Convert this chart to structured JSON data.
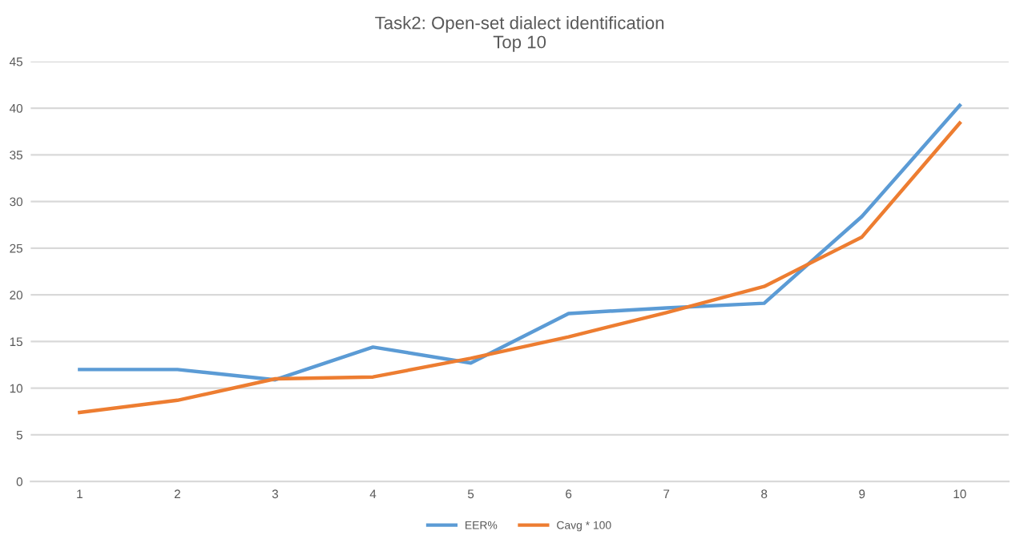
{
  "chart_data": {
    "type": "line",
    "title": "Task2: Open-set dialect identification\nTop 10",
    "categories": [
      "1",
      "2",
      "3",
      "4",
      "5",
      "6",
      "7",
      "8",
      "9",
      "10"
    ],
    "series": [
      {
        "name": "EER%",
        "color": "#5b9bd5",
        "values": [
          12,
          12,
          10.9,
          14.4,
          12.7,
          18,
          18.6,
          19.1,
          28.4,
          40.3
        ]
      },
      {
        "name": "Cavg * 100",
        "color": "#ed7d31",
        "values": [
          7.4,
          8.7,
          11,
          11.2,
          13.2,
          15.5,
          18.1,
          20.9,
          26.2,
          38.4
        ]
      }
    ],
    "ylim": [
      0,
      45
    ],
    "yticks": [
      0,
      5,
      10,
      15,
      20,
      25,
      30,
      35,
      40,
      45
    ],
    "grid": "y",
    "legend": "bottom",
    "line_style": "solid",
    "marker": "none"
  }
}
